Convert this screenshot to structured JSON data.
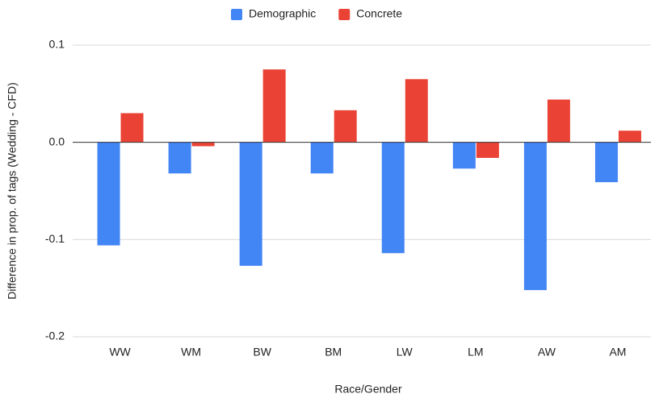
{
  "chart_data": {
    "type": "bar",
    "x_label": "Race/Gender",
    "y_label": "Difference in prop. of tags (Wedding - CFD)",
    "categories": [
      "WW",
      "WM",
      "BW",
      "BM",
      "LW",
      "LM",
      "AW",
      "AM"
    ],
    "series": [
      {
        "name": "Demographic",
        "color": "#4285f4",
        "values": [
          -0.106,
          -0.032,
          -0.127,
          -0.032,
          -0.114,
          -0.027,
          -0.152,
          -0.041
        ]
      },
      {
        "name": "Concrete",
        "color": "#ea4335",
        "values": [
          0.03,
          -0.004,
          0.075,
          0.033,
          0.065,
          -0.016,
          0.044,
          0.012
        ]
      }
    ],
    "ylim": [
      -0.2,
      0.1
    ],
    "yticks": [
      -0.2,
      -0.1,
      {
        "value": 0,
        "label": "0.0"
      },
      0.1
    ],
    "grid": true,
    "legend": "top"
  }
}
